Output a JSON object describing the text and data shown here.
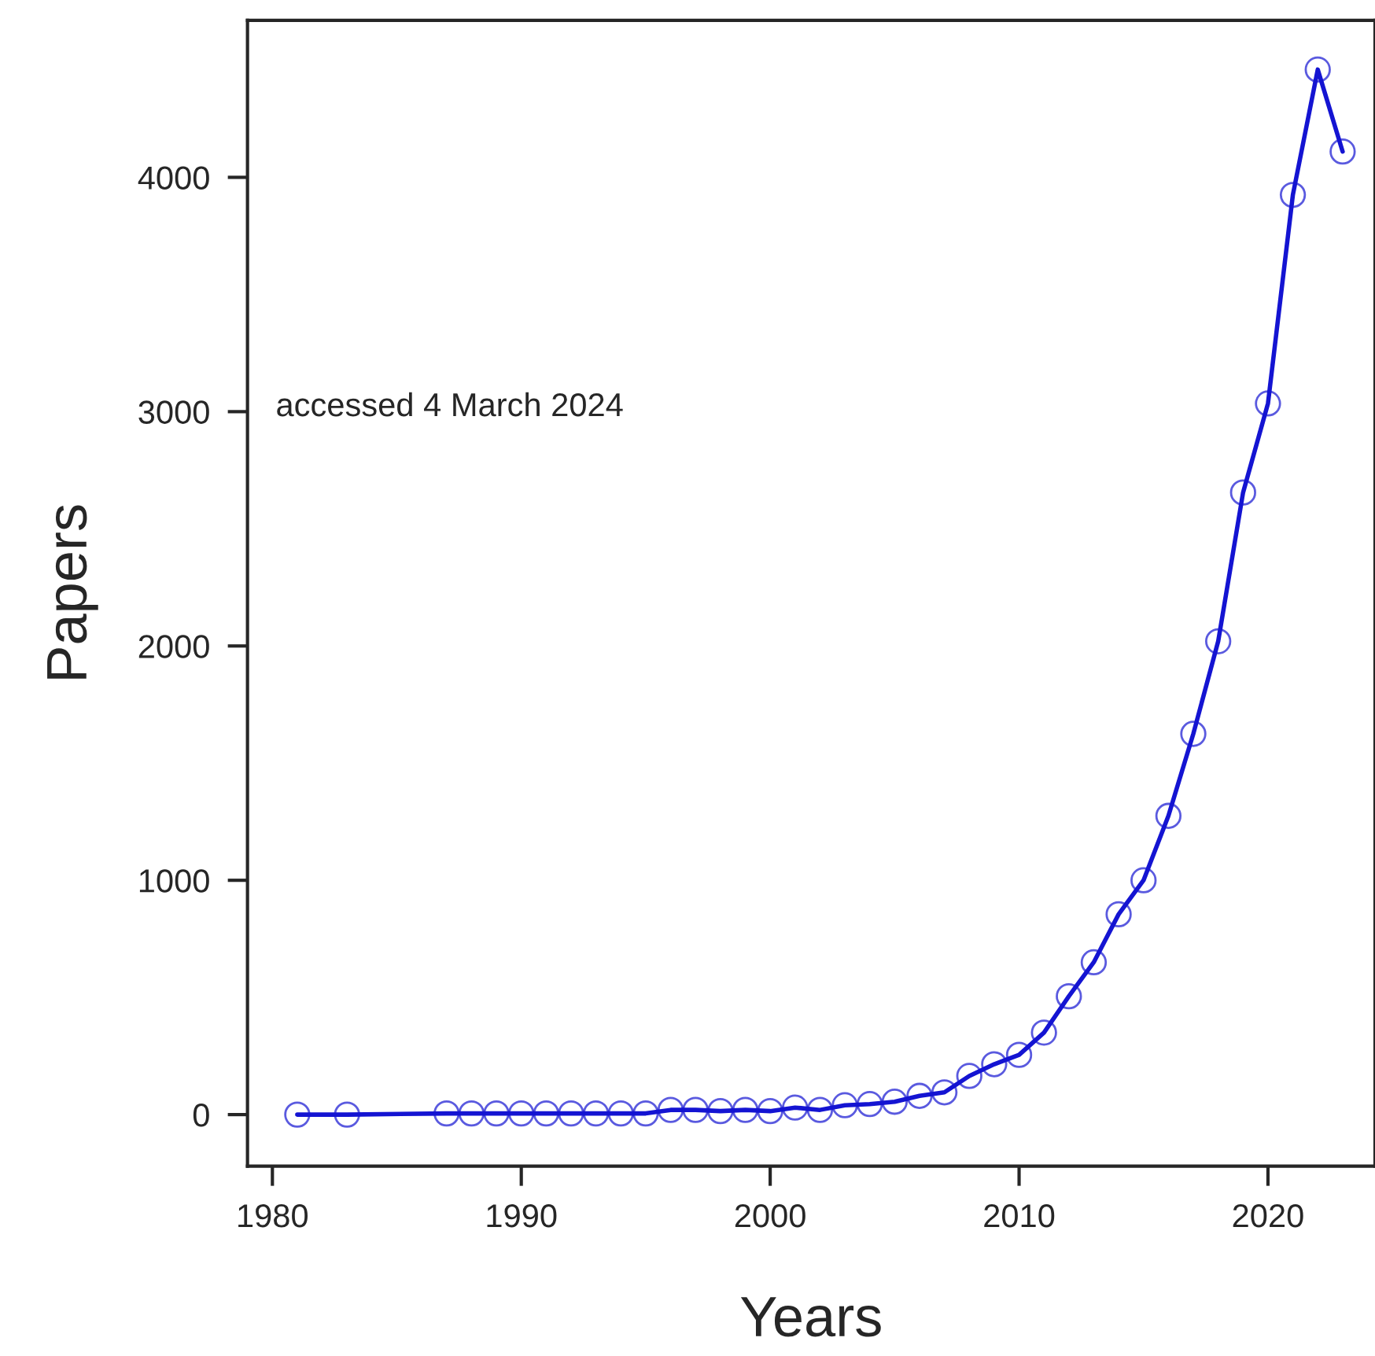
{
  "chart_data": {
    "type": "line",
    "xlabel": "Years",
    "ylabel": "Papers",
    "annotations": [
      "accessed 4 March 2024"
    ],
    "x": [
      1981,
      1983,
      1987,
      1988,
      1989,
      1990,
      1991,
      1992,
      1993,
      1994,
      1995,
      1996,
      1997,
      1998,
      1999,
      2000,
      2001,
      2002,
      2003,
      2004,
      2005,
      2006,
      2007,
      2008,
      2009,
      2010,
      2011,
      2012,
      2013,
      2014,
      2015,
      2016,
      2017,
      2018,
      2019,
      2020,
      2021,
      2022,
      2023
    ],
    "series": [
      {
        "color": "#1414d2",
        "values": [
          0,
          0,
          5,
          5,
          5,
          5,
          5,
          5,
          5,
          5,
          5,
          20,
          20,
          15,
          20,
          15,
          30,
          20,
          40,
          45,
          55,
          80,
          95,
          165,
          215,
          255,
          350,
          505,
          650,
          855,
          1000,
          1275,
          1625,
          2020,
          2655,
          3035,
          3925,
          4460,
          4110
        ]
      }
    ],
    "xlim": [
      1979,
      2024.3
    ],
    "ylim": [
      -220,
      4670
    ],
    "xticks": [
      1980,
      1990,
      2000,
      2010,
      2020
    ],
    "yticks": [
      0,
      1000,
      2000,
      3000,
      4000
    ],
    "marker": "circle",
    "line_style": "solid",
    "grid": false,
    "legend": false
  }
}
